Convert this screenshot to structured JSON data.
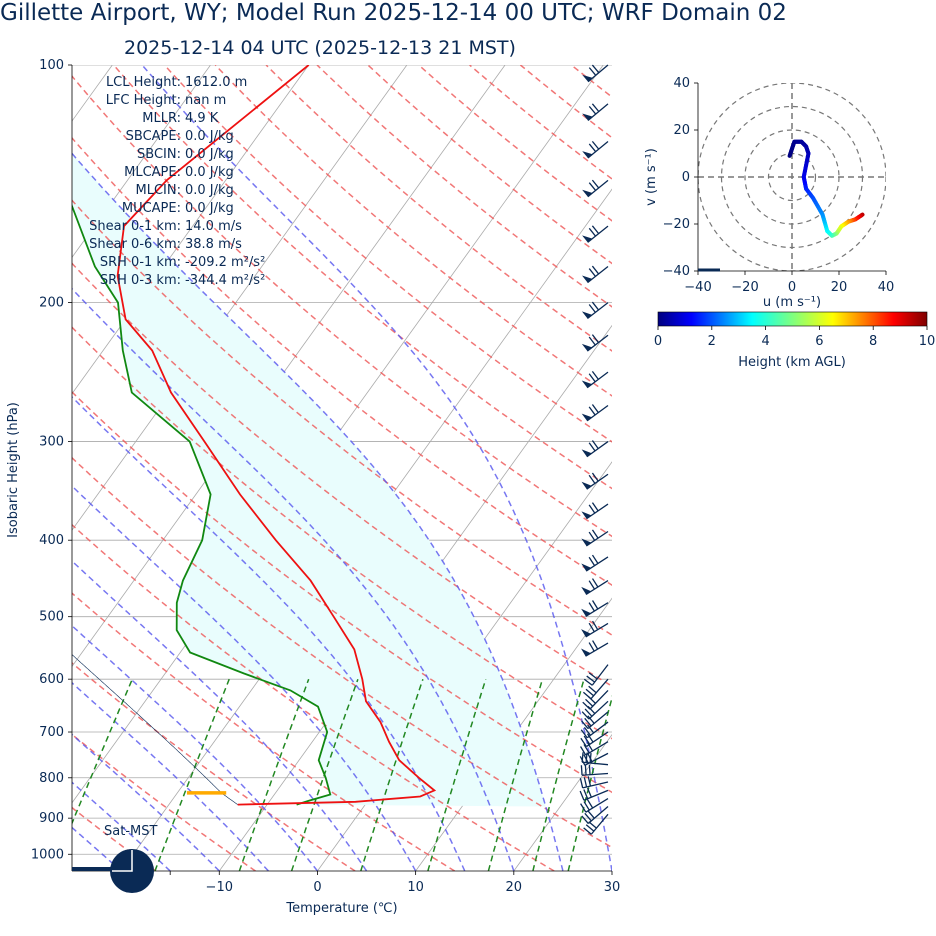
{
  "header": {
    "title": "Gillette  Airport, WY; Model Run 2025-12-14 00 UTC; WRF Domain 02",
    "subtitle": "2025-12-14 04 UTC  (2025-12-13 21 MST)"
  },
  "skewt": {
    "xlabel": "Temperature (℃)",
    "ylabel": "Isobaric Height (hPa)",
    "xticks": [
      -10,
      0,
      10,
      20,
      30
    ],
    "xtick_first_label": "−10",
    "pressure_ticks": [
      100,
      200,
      300,
      400,
      500,
      600,
      700,
      800,
      900,
      1000
    ],
    "indicator_label": "Sat-MST",
    "colors": {
      "temperature": "#ee1111",
      "dewpoint": "#118811",
      "dry_adiabat": "#ee5555",
      "moist_adiabat": "#5555ee",
      "mixing_ratio": "#228822",
      "barb": "#0a2a55",
      "lcl": "#ffaa00"
    }
  },
  "indices": [
    {
      "label": "LCL Height:",
      "value": "1612.0 m"
    },
    {
      "label": "LFC Height:",
      "value": "nan m"
    },
    {
      "label": "MLLR:",
      "value": "4.9 K"
    },
    {
      "label": "SBCAPE:",
      "value": "0.0 J/kg"
    },
    {
      "label": "SBCIN:",
      "value": "0.0 J/kg"
    },
    {
      "label": "MLCAPE:",
      "value": "0.0 J/kg"
    },
    {
      "label": "MLCIN:",
      "value": "0.0 J/kg"
    },
    {
      "label": "MUCAPE:",
      "value": "0.0 J/kg"
    },
    {
      "label": "Shear 0-1 km:",
      "value": "14.0 m/s"
    },
    {
      "label": "Shear 0-6 km:",
      "value": "38.8 m/s"
    },
    {
      "label": "SRH 0-1 km:",
      "value": "-209.2 m²/s²"
    },
    {
      "label": "SRH 0-3 km:",
      "value": "-344.4 m²/s²"
    }
  ],
  "hodograph": {
    "xlabel": "u (m s⁻¹)",
    "ylabel": "v (m s⁻¹)",
    "ticks": [
      -40,
      -20,
      0,
      20,
      40
    ],
    "tick_labels": [
      "−40",
      "−20",
      "0",
      "20",
      "40"
    ],
    "colorbar_label": "Height (km AGL)",
    "colorbar_ticks": [
      0,
      2,
      4,
      6,
      8,
      10
    ]
  },
  "chart_data": [
    {
      "type": "line",
      "title": "2025-12-14 04 UTC  (2025-12-13 21 MST)",
      "xlabel": "Temperature (℃)",
      "ylabel": "Isobaric Height (hPa)",
      "xlim": [
        -25,
        30
      ],
      "ylim": [
        1050,
        100
      ],
      "yscale": "log",
      "skew": true,
      "series": [
        {
          "name": "Temperature",
          "x": [
            -13.0,
            -1.2,
            5.0,
            6.0,
            3.5,
            0.2,
            -2.2,
            -4.5,
            -7.5,
            -9.5,
            -12.5,
            -17.0,
            -22.0,
            -28.5,
            -35.5,
            -43.0,
            -50.0,
            -55.0,
            -60.0,
            -64.0,
            -67.0,
            -66.0,
            -60.0
          ],
          "y": [
            865,
            858,
            845,
            830,
            800,
            760,
            720,
            680,
            640,
            600,
            550,
            500,
            450,
            400,
            350,
            300,
            260,
            230,
            210,
            185,
            160,
            140,
            100
          ]
        },
        {
          "name": "Dewpoint",
          "x": [
            -7.0,
            -6.0,
            -4.3,
            -6.0,
            -8.0,
            -9.2,
            -12.0,
            -16.0,
            -22.0,
            -29.0,
            -32.0,
            -34.0,
            -35.0,
            -36.0,
            -38.5,
            -44.5,
            -54.0,
            -58.0,
            -62.0,
            -67.0,
            -74.0,
            -83.0,
            -90.0
          ],
          "y": [
            865,
            855,
            840,
            800,
            760,
            700,
            650,
            620,
            590,
            555,
            520,
            480,
            450,
            400,
            350,
            300,
            260,
            230,
            200,
            180,
            150,
            130,
            100
          ]
        }
      ],
      "lcl_pressure": 836
    },
    {
      "type": "scatter",
      "title": "",
      "xlabel": "u (m s⁻¹)",
      "ylabel": "v (m s⁻¹)",
      "xlim": [
        -40,
        40
      ],
      "ylim": [
        -40,
        40
      ],
      "grid": true,
      "colorbar": {
        "label": "Height (km AGL)",
        "range": [
          0,
          10
        ]
      },
      "points": [
        {
          "u": 30,
          "v": -16,
          "h": 9.5
        },
        {
          "u": 27,
          "v": -18,
          "h": 8.5
        },
        {
          "u": 24,
          "v": -19,
          "h": 7.5
        },
        {
          "u": 21,
          "v": -21,
          "h": 6.5
        },
        {
          "u": 19,
          "v": -24,
          "h": 5.5
        },
        {
          "u": 17,
          "v": -25,
          "h": 4.5
        },
        {
          "u": 15,
          "v": -23,
          "h": 3.6
        },
        {
          "u": 13,
          "v": -16,
          "h": 2.6
        },
        {
          "u": 9,
          "v": -9,
          "h": 2.0
        },
        {
          "u": 6,
          "v": -5,
          "h": 1.6
        },
        {
          "u": 5,
          "v": 0,
          "h": 1.1
        },
        {
          "u": 7,
          "v": 10,
          "h": 0.6
        },
        {
          "u": 6,
          "v": 13,
          "h": 0.4
        },
        {
          "u": 4,
          "v": 15,
          "h": 0.3
        },
        {
          "u": 1,
          "v": 15,
          "h": 0.2
        },
        {
          "u": 0,
          "v": 12,
          "h": 0.1
        },
        {
          "u": -1,
          "v": 9,
          "h": 0.0
        }
      ]
    }
  ]
}
